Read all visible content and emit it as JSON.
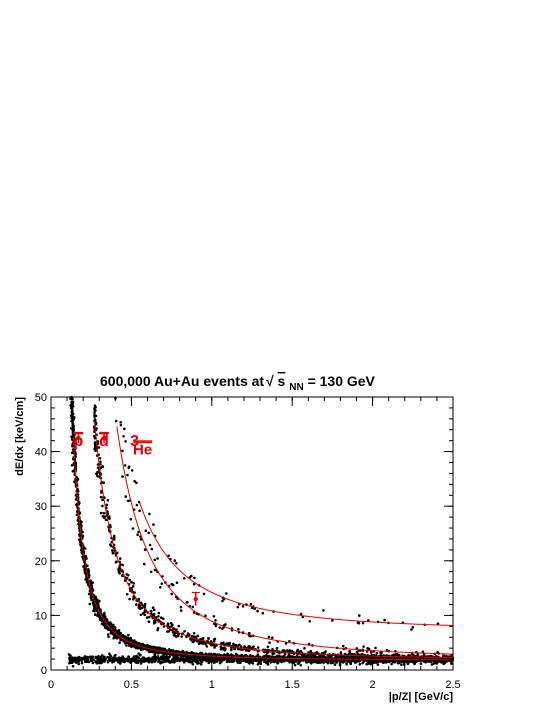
{
  "chart_data": {
    "type": "scatter",
    "title_main": "600,000 Au+Au events at ",
    "title_sqrt": "s",
    "title_sub": "NN",
    "title_tail": " = 130 GeV",
    "xlabel": "|p/Z| [GeV/c]",
    "ylabel": "dE/dx [keV/cm]",
    "xlim": [
      0,
      2.5
    ],
    "ylim": [
      0,
      50
    ],
    "x_ticks": [
      {
        "value": 0,
        "label": "0"
      },
      {
        "value": 0.5,
        "label": "0.5"
      },
      {
        "value": 1,
        "label": "1"
      },
      {
        "value": 1.5,
        "label": "1.5"
      },
      {
        "value": 2,
        "label": "2"
      },
      {
        "value": 2.5,
        "label": "2.5"
      }
    ],
    "y_ticks": [
      {
        "value": 0,
        "label": "0"
      },
      {
        "value": 10,
        "label": "10"
      },
      {
        "value": 20,
        "label": "20"
      },
      {
        "value": 30,
        "label": "30"
      },
      {
        "value": 40,
        "label": "40"
      },
      {
        "value": 50,
        "label": "50"
      }
    ],
    "marker_color": "#000000",
    "curve_color": "#e00000",
    "annotations": [
      {
        "text": "p",
        "overline": true,
        "x": 0.17,
        "y": 41
      },
      {
        "text": "d",
        "overline": true,
        "x": 0.33,
        "y": 41
      },
      {
        "text": "3",
        "overline": false,
        "x": 0.52,
        "y": 41
      },
      {
        "text": "He",
        "overline": true,
        "x": 0.57,
        "y": 39.5
      }
    ],
    "bands": [
      {
        "name": "pi",
        "x_range": [
          0.11,
          2.5
        ],
        "kind": "flat",
        "level": 1.9
      },
      {
        "name": "p",
        "x_range": [
          0.12,
          2.5
        ],
        "kind": "bethe",
        "scale": 1.0
      },
      {
        "name": "d",
        "x_range": [
          0.27,
          2.5
        ],
        "kind": "bethe",
        "scale": 2.0
      }
    ],
    "curves": [
      {
        "name": "p",
        "x_range": [
          0.14,
          2.5
        ],
        "scale": 1.0
      },
      {
        "name": "d",
        "x_range": [
          0.27,
          2.5
        ],
        "scale": 2.0
      },
      {
        "name": "t",
        "x_range": [
          0.41,
          2.5
        ],
        "scale": 3.0
      },
      {
        "name": "3He",
        "x_range": [
          0.55,
          2.5
        ],
        "scale": 1.5,
        "charge2": 4
      }
    ],
    "error_points": [
      {
        "x": 0.17,
        "y": 42.5,
        "yerr": 1.0
      },
      {
        "x": 0.33,
        "y": 42.5,
        "yerr": 1.0
      },
      {
        "x": 0.9,
        "y": 13.0,
        "yerr": 1.2
      }
    ]
  }
}
